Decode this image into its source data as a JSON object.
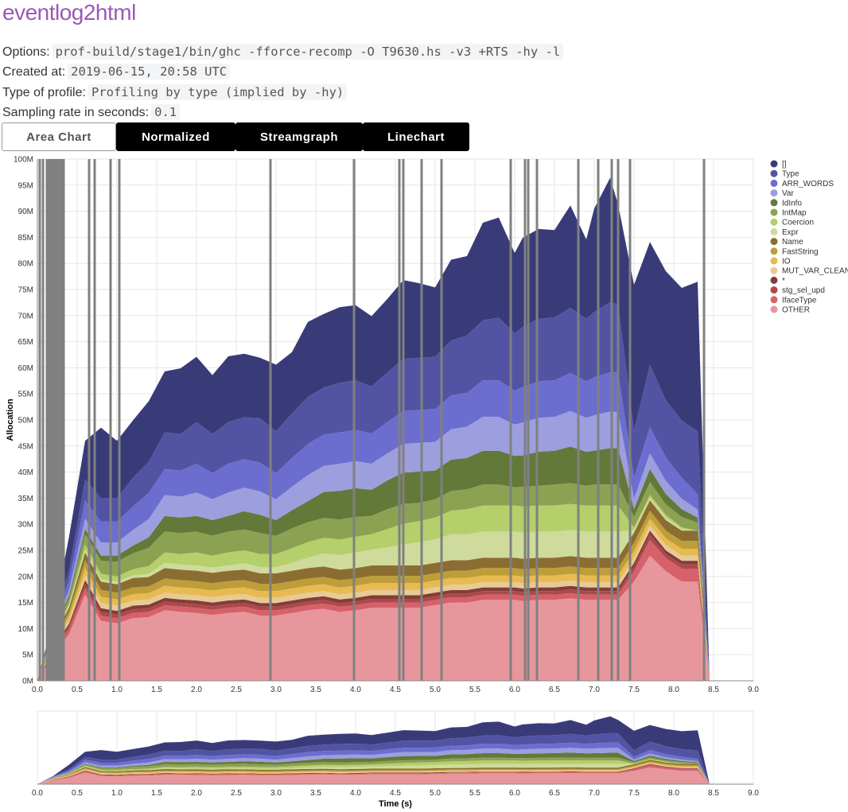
{
  "page": {
    "title": "eventlog2html",
    "options_label": "Options:",
    "options_value": "prof-build/stage1/bin/ghc -fforce-recomp -O T9630.hs -v3 +RTS -hy -l",
    "created_label": "Created at:",
    "created_value": "2019-06-15, 20:58 UTC",
    "profile_label": "Type of profile:",
    "profile_value": "Profiling by type (implied by -hy)",
    "rate_label": "Sampling rate in seconds:",
    "rate_value": "0.1"
  },
  "tabs": [
    "Area Chart",
    "Normalized",
    "Streamgraph",
    "Linechart"
  ],
  "chart_data": {
    "type": "area",
    "stacked": true,
    "ylabel": "Allocation",
    "xlabel": "Time (s)",
    "xlim": [
      0,
      9
    ],
    "ylim": [
      0,
      100
    ],
    "y_unit": "M",
    "x_ticks": [
      "0.0",
      "0.5",
      "1.0",
      "1.5",
      "2.0",
      "2.5",
      "3.0",
      "3.5",
      "4.0",
      "4.5",
      "5.0",
      "5.5",
      "6.0",
      "6.5",
      "7.0",
      "7.5",
      "8.0",
      "8.5",
      "9.0"
    ],
    "y_ticks": [
      "0M",
      "5M",
      "10M",
      "15M",
      "20M",
      "25M",
      "30M",
      "35M",
      "40M",
      "45M",
      "50M",
      "55M",
      "60M",
      "65M",
      "70M",
      "75M",
      "80M",
      "85M",
      "90M",
      "95M",
      "100M"
    ],
    "grid": true,
    "legend_position": "right",
    "x": [
      0,
      0.2,
      0.4,
      0.6,
      0.8,
      1.0,
      1.2,
      1.4,
      1.6,
      1.8,
      2.0,
      2.2,
      2.4,
      2.6,
      2.8,
      3.0,
      3.2,
      3.4,
      3.6,
      3.8,
      4.0,
      4.2,
      4.4,
      4.6,
      4.8,
      5.0,
      5.2,
      5.4,
      5.6,
      5.8,
      6.0,
      6.1,
      6.3,
      6.5,
      6.7,
      6.9,
      7.0,
      7.2,
      7.3,
      7.5,
      7.7,
      7.9,
      8.1,
      8.3,
      8.45
    ],
    "total_outline": [
      0,
      12,
      28,
      46,
      52,
      51,
      54,
      57,
      63,
      65,
      66,
      63,
      67,
      68,
      68,
      64,
      67,
      71,
      72,
      72.5,
      72.5,
      70,
      73,
      75.5,
      74,
      72.5,
      77,
      78,
      83,
      83.5,
      77,
      80,
      81.5,
      82,
      86.5,
      80,
      86,
      93,
      87,
      76,
      83,
      79,
      75.5,
      77.5,
      0
    ],
    "series": [
      {
        "name": "OTHER",
        "color": "#e7969c",
        "values": [
          0,
          5,
          9,
          16.5,
          11.5,
          11,
          12,
          12.2,
          13.5,
          13.2,
          13,
          12.6,
          13,
          13.2,
          12.5,
          12.5,
          13,
          13.5,
          13.8,
          13.2,
          13.5,
          14,
          14,
          14,
          14,
          14.5,
          15,
          15,
          15.5,
          15.5,
          15.5,
          15.3,
          15.5,
          15.5,
          15.8,
          15.5,
          15.5,
          15.5,
          15.5,
          19,
          24,
          21,
          19,
          19,
          0
        ]
      },
      {
        "name": "IfaceType",
        "color": "#d6616b",
        "values": [
          0,
          0.5,
          1,
          1.2,
          1,
          1,
          1,
          1,
          1,
          1,
          1,
          1,
          1,
          1,
          1,
          1,
          1,
          1,
          1,
          1,
          1,
          1,
          1,
          1,
          1,
          1,
          1,
          1,
          1,
          1,
          1,
          1,
          1,
          1,
          1,
          1,
          1,
          1,
          1,
          2,
          3,
          2.5,
          2.5,
          2.5,
          0
        ]
      },
      {
        "name": "stg_sel_upd",
        "color": "#ad494a",
        "values": [
          0,
          0.3,
          0.5,
          0.8,
          0.7,
          0.7,
          0.7,
          0.7,
          0.7,
          0.7,
          0.7,
          0.7,
          0.7,
          0.7,
          0.7,
          0.7,
          0.7,
          0.7,
          0.7,
          0.7,
          0.7,
          0.7,
          0.7,
          0.7,
          0.7,
          0.7,
          0.7,
          0.7,
          0.7,
          0.7,
          0.7,
          0.7,
          0.7,
          0.7,
          0.7,
          0.7,
          0.7,
          0.7,
          0.7,
          0.8,
          1,
          0.8,
          0.8,
          0.8,
          0
        ]
      },
      {
        "name": "*",
        "color": "#843c39",
        "values": [
          0,
          0.3,
          0.5,
          0.8,
          0.7,
          0.7,
          0.7,
          0.7,
          0.7,
          0.7,
          0.7,
          0.7,
          0.7,
          0.7,
          0.7,
          0.7,
          0.7,
          0.7,
          0.7,
          0.7,
          0.7,
          0.7,
          0.7,
          0.7,
          0.7,
          0.7,
          0.7,
          0.7,
          0.7,
          0.7,
          0.7,
          0.7,
          0.7,
          0.7,
          0.7,
          0.7,
          0.7,
          0.7,
          0.7,
          0.8,
          0.8,
          0.7,
          0.7,
          0.7,
          0
        ]
      },
      {
        "name": "MUT_VAR_CLEAN",
        "color": "#e7cb94",
        "values": [
          0,
          0.4,
          0.7,
          1,
          1,
          1,
          1,
          1,
          1,
          1,
          1,
          1,
          1,
          1,
          1,
          1,
          1,
          1,
          1,
          1,
          1,
          1,
          1,
          1,
          1,
          1,
          1,
          1,
          1,
          1,
          1,
          1,
          1,
          1,
          1,
          1,
          1,
          1,
          1,
          1,
          1,
          1,
          1,
          1,
          0
        ]
      },
      {
        "name": "IO",
        "color": "#e7ba52",
        "values": [
          0,
          0.5,
          0.8,
          1.3,
          1.2,
          1.2,
          1.2,
          1.2,
          1.3,
          1.3,
          1.3,
          1.3,
          1.3,
          1.3,
          1.3,
          1.3,
          1.3,
          1.3,
          1.3,
          1.3,
          1.3,
          1.3,
          1.3,
          1.3,
          1.3,
          1.3,
          1.3,
          1.3,
          1.3,
          1.3,
          1.3,
          1.3,
          1.3,
          1.3,
          1.3,
          1.3,
          1.3,
          1.3,
          1.3,
          1.3,
          1.3,
          1.3,
          1.3,
          1.3,
          0
        ]
      },
      {
        "name": "FastString",
        "color": "#bd9e39",
        "values": [
          0,
          0.5,
          0.8,
          1.5,
          1.3,
          1.3,
          1.3,
          1.3,
          1.4,
          1.4,
          1.4,
          1.4,
          1.4,
          1.4,
          1.4,
          1.4,
          1.4,
          1.4,
          1.4,
          1.4,
          1.4,
          1.4,
          1.4,
          1.4,
          1.4,
          1.4,
          1.4,
          1.4,
          1.4,
          1.4,
          1.4,
          1.4,
          1.4,
          1.4,
          1.4,
          1.4,
          1.4,
          1.4,
          1.4,
          1.5,
          1.5,
          1.5,
          1.5,
          1.5,
          0
        ]
      },
      {
        "name": "Name",
        "color": "#8c6d31",
        "values": [
          0,
          0.5,
          0.8,
          1.5,
          1.6,
          1.6,
          1.8,
          1.8,
          2,
          2,
          2,
          2,
          2,
          2,
          2,
          2,
          2,
          2,
          2,
          2,
          2,
          2,
          2,
          2,
          2,
          2,
          2,
          2,
          2,
          2,
          2,
          2,
          2,
          2,
          2,
          2,
          2,
          2,
          2,
          2,
          2,
          2,
          2,
          2,
          0
        ]
      },
      {
        "name": "Expr",
        "color": "#cedb9c",
        "values": [
          0,
          0.2,
          0.3,
          0.5,
          0.5,
          0.5,
          0.5,
          0.6,
          1,
          1,
          1,
          1,
          1,
          1.2,
          1.2,
          1.2,
          1.5,
          2,
          2.5,
          2.8,
          3,
          3,
          3.5,
          4,
          4.5,
          4.5,
          5,
          5,
          5,
          5,
          5,
          5,
          5,
          5,
          5,
          5,
          5,
          5,
          5,
          0.5,
          0.5,
          0.5,
          0.3,
          0,
          0
        ]
      },
      {
        "name": "Coercion",
        "color": "#b5cf6b",
        "values": [
          0,
          0.3,
          0.5,
          1,
          1,
          1,
          1.2,
          1.5,
          2,
          2,
          2.5,
          2.3,
          2.5,
          2.5,
          2.5,
          2.5,
          2.8,
          3,
          3,
          3,
          3,
          3,
          3.5,
          4,
          4,
          4.2,
          4.5,
          4.8,
          5,
          5,
          5,
          5,
          5,
          5,
          5,
          5,
          5,
          5,
          5,
          0.5,
          0.5,
          0.5,
          0.3,
          0,
          0
        ]
      },
      {
        "name": "IntMap",
        "color": "#8ca252",
        "values": [
          0,
          0.5,
          1,
          2,
          2.5,
          2.8,
          3,
          3.5,
          4,
          4,
          4,
          3.8,
          4,
          4,
          4,
          3.5,
          3.8,
          3.8,
          3.8,
          3.8,
          3.8,
          3.5,
          3.8,
          3.8,
          3.5,
          3.5,
          3.8,
          3.8,
          4,
          4,
          3.5,
          3.8,
          3.8,
          4,
          4,
          3.8,
          4,
          4,
          4,
          2,
          2.5,
          2,
          2,
          1.5,
          0
        ]
      },
      {
        "name": "IdInfo",
        "color": "#637939",
        "values": [
          0,
          0.3,
          0.6,
          1,
          1,
          1.2,
          1.5,
          2,
          3,
          3,
          3,
          3,
          3,
          3.5,
          3.5,
          3,
          3.5,
          4,
          5,
          5.5,
          5.5,
          5,
          5.5,
          6,
          6,
          5.5,
          6,
          6,
          6.5,
          6.5,
          6,
          6,
          6.5,
          6.5,
          7,
          6.5,
          6.5,
          7,
          7,
          1.5,
          2.5,
          2,
          1.5,
          1,
          0
        ]
      },
      {
        "name": "Var",
        "color": "#9c9ede",
        "values": [
          0,
          0.5,
          1,
          2,
          2.5,
          2.5,
          3,
          3.5,
          4,
          4,
          4.5,
          4,
          4.5,
          4.5,
          4.5,
          4,
          4.5,
          5,
          5,
          5.2,
          5.2,
          5,
          5.2,
          5.5,
          5.5,
          5.5,
          5.8,
          6,
          6.5,
          6.5,
          6,
          6.3,
          6.5,
          6.5,
          6.8,
          6.5,
          6.8,
          7,
          7,
          2,
          3,
          2.5,
          2,
          1.5,
          0
        ]
      },
      {
        "name": "ARR_WORDS",
        "color": "#6b6ecf",
        "values": [
          0,
          0.8,
          1.8,
          3.5,
          4,
          4,
          4.5,
          5,
          5,
          5,
          5.5,
          5,
          5.5,
          5.5,
          5.5,
          5,
          5.5,
          6,
          6,
          6,
          6,
          5.8,
          6,
          6.3,
          6.3,
          6.3,
          6.5,
          6.5,
          7,
          7,
          6.5,
          6.8,
          7,
          7,
          7.3,
          7,
          7.3,
          7.5,
          7.5,
          4,
          5,
          4.5,
          4,
          3,
          0
        ]
      },
      {
        "name": "Type",
        "color": "#5254a3",
        "values": [
          0,
          0.7,
          2,
          4,
          4.5,
          4.5,
          5.5,
          6,
          7,
          7,
          8,
          7.5,
          8,
          8,
          8.5,
          8,
          8.5,
          9,
          9,
          9.5,
          9.5,
          9,
          9.5,
          10,
          10,
          10,
          10.5,
          11,
          11.5,
          12,
          11,
          11.5,
          12,
          12,
          12.5,
          12,
          12.5,
          13.5,
          13,
          9,
          12,
          11,
          11,
          12,
          0
        ]
      },
      {
        "name": "[]",
        "color": "#393b79",
        "values": [
          0,
          0.5,
          6.5,
          7.4,
          13.5,
          11,
          11,
          11.6,
          11.7,
          12.6,
          12.5,
          11.3,
          12.6,
          12.2,
          11.6,
          12.8,
          11.8,
          14.4,
          14.1,
          14.5,
          14.4,
          13.5,
          14.1,
          15.1,
          14.3,
          13.3,
          15.5,
          15.2,
          18.7,
          19.2,
          15.4,
          17.1,
          17.2,
          16.8,
          19.6,
          15.2,
          19.8,
          23.8,
          19.2,
          28,
          23.5,
          24.7,
          25.4,
          28.7,
          0
        ]
      }
    ],
    "event_markers": [
      0.03,
      0.07,
      0.12,
      0.15,
      0.18,
      0.2,
      0.22,
      0.25,
      0.28,
      0.3,
      0.33,
      0.65,
      0.72,
      0.92,
      1.03,
      2.93,
      3.98,
      4.55,
      4.6,
      4.83,
      5.08,
      5.95,
      6.13,
      6.17,
      6.28,
      6.8,
      7.05,
      7.22,
      7.3,
      7.45,
      8.38
    ]
  }
}
